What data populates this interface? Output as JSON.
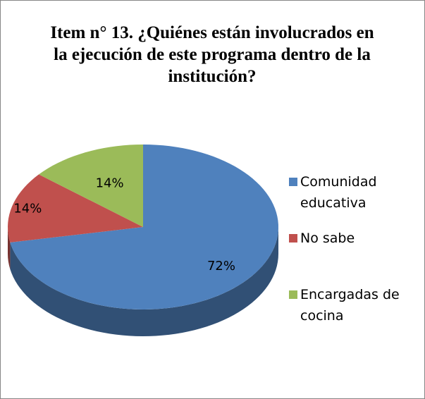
{
  "chart_data": {
    "type": "pie",
    "title": "Item n° 13. ¿Quiénes están involucrados en la ejecución de este programa dentro de la institución?",
    "categories": [
      "Comunidad educativa",
      "No sabe",
      "Encargadas de cocina"
    ],
    "values": [
      72,
      14,
      14
    ],
    "value_labels": [
      "72%",
      "14%",
      "14%"
    ],
    "colors": [
      "#4f81bd",
      "#c0504d",
      "#9bbb59"
    ],
    "legend": "right"
  }
}
